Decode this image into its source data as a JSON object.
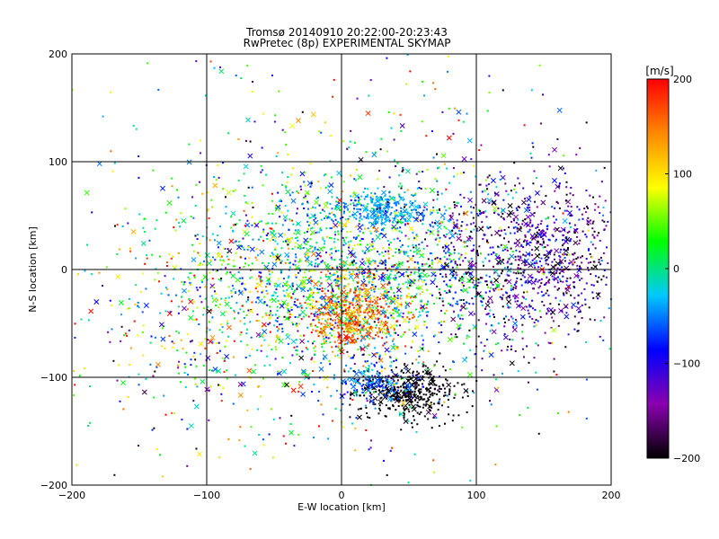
{
  "chart_data": {
    "type": "scatter",
    "title": "Tromsø 20140910 20:22:00-20:23:43",
    "subtitle": "RwPretec (8p) EXPERIMENTAL SKYMAP",
    "xlabel": "E-W location [km]",
    "ylabel": "N-S location [km]",
    "xlim": [
      -200,
      200
    ],
    "ylim": [
      -200,
      200
    ],
    "xticks": [
      -200,
      -100,
      0,
      100,
      200
    ],
    "yticks": [
      -200,
      -100,
      0,
      100,
      200
    ],
    "grid": true,
    "markers": [
      "dot",
      "x"
    ],
    "colorbar": {
      "label": "[m/s]",
      "min": -200,
      "max": 200,
      "ticks": [
        -200,
        -100,
        0,
        100,
        200
      ],
      "colormap": [
        "#000000",
        "#8b00b0",
        "#0000ff",
        "#00c8ff",
        "#00ff00",
        "#ffff00",
        "#ff8800",
        "#ff0000"
      ]
    },
    "clusters": [
      {
        "x": 10,
        "y": 0,
        "sx": 55,
        "sy": 45,
        "v": -10,
        "sv": 60,
        "n": 1400
      },
      {
        "x": 10,
        "y": -40,
        "sx": 18,
        "sy": 18,
        "v": 150,
        "sv": 40,
        "n": 500
      },
      {
        "x": 30,
        "y": 55,
        "sx": 20,
        "sy": 8,
        "v": -40,
        "sv": 15,
        "n": 250
      },
      {
        "x": 50,
        "y": -115,
        "sx": 20,
        "sy": 12,
        "v": -200,
        "sv": 10,
        "n": 400
      },
      {
        "x": 20,
        "y": -105,
        "sx": 15,
        "sy": 10,
        "v": -60,
        "sv": 20,
        "n": 150
      },
      {
        "x": 140,
        "y": 10,
        "sx": 45,
        "sy": 40,
        "v": -140,
        "sv": 50,
        "n": 1100
      },
      {
        "x": -80,
        "y": -30,
        "sx": 50,
        "sy": 50,
        "v": 30,
        "sv": 100,
        "n": 500
      },
      {
        "x": 0,
        "y": 0,
        "sx": 120,
        "sy": 120,
        "v": 0,
        "sv": 120,
        "n": 700
      }
    ]
  }
}
